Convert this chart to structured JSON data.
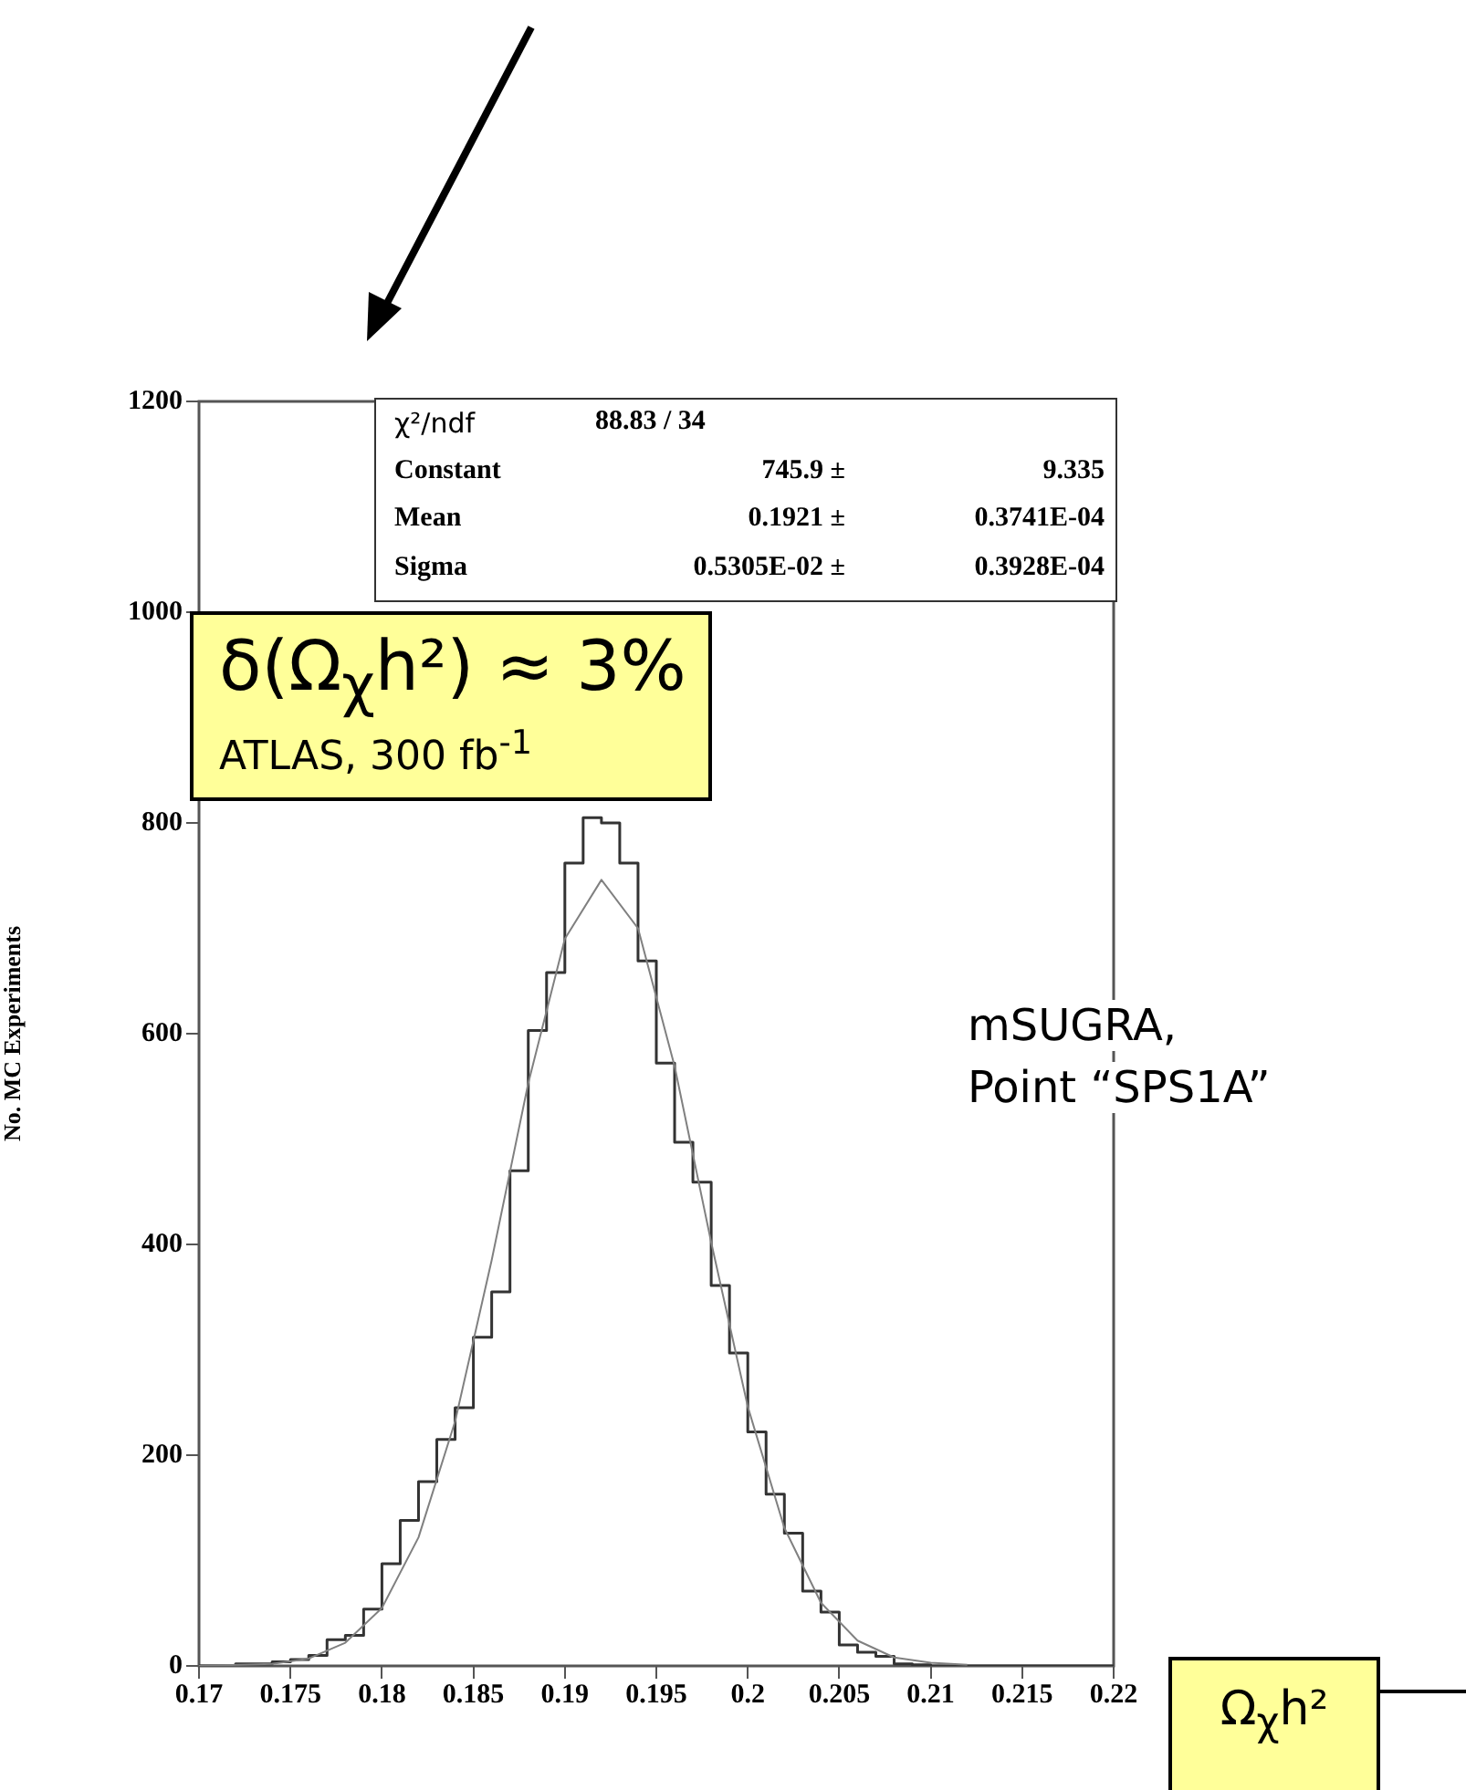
{
  "chart_data": {
    "type": "histogram",
    "xlabel": "Ω$_{χ}$h²",
    "ylabel": "No. MC Experiments",
    "xlim": [
      0.17,
      0.22
    ],
    "xticks": [
      0.17,
      0.175,
      0.18,
      0.185,
      0.19,
      0.195,
      0.2,
      0.205,
      0.21,
      0.215,
      0.22
    ],
    "ylim": [
      0,
      1200
    ],
    "yticks": [
      0,
      200,
      400,
      600,
      800,
      1000,
      1200
    ],
    "series": [
      {
        "type": "histogram",
        "color": "#333333",
        "bins": [
          0.17,
          0.171,
          0.172,
          0.173,
          0.174,
          0.175,
          0.176,
          0.177,
          0.178,
          0.179,
          0.18,
          0.181,
          0.182,
          0.183,
          0.184,
          0.185,
          0.186,
          0.187,
          0.188,
          0.189,
          0.19,
          0.191,
          0.192,
          0.193,
          0.194,
          0.195,
          0.196,
          0.197,
          0.198,
          0.199,
          0.2,
          0.201,
          0.202,
          0.203,
          0.204,
          0.205,
          0.206,
          0.207,
          0.208,
          0.209,
          0.21,
          0.211,
          0.212,
          0.213,
          0.214,
          0.215,
          0.216,
          0.217,
          0.218,
          0.219,
          0.22
        ],
        "values": [
          0,
          0,
          2,
          2,
          4,
          6,
          10,
          25,
          29,
          54,
          97,
          138,
          175,
          215,
          245,
          312,
          355,
          470,
          603,
          658,
          762,
          805,
          800,
          762,
          669,
          572,
          497,
          459,
          361,
          297,
          222,
          163,
          126,
          71,
          51,
          20,
          13,
          9,
          2,
          1,
          0,
          0,
          0,
          0,
          0,
          0,
          0,
          0,
          0,
          0
        ]
      },
      {
        "type": "line",
        "color": "#808080",
        "x": [
          0.17,
          0.174,
          0.176,
          0.178,
          0.18,
          0.182,
          0.184,
          0.186,
          0.188,
          0.19,
          0.192,
          0.194,
          0.196,
          0.198,
          0.2,
          0.202,
          0.204,
          0.206,
          0.208,
          0.21,
          0.212
        ],
        "values": [
          0,
          2,
          7,
          22,
          55,
          122,
          232,
          385,
          553,
          690,
          746,
          700,
          569,
          402,
          246,
          131,
          60,
          24,
          8,
          3,
          1
        ]
      }
    ],
    "annotations": [
      "χ²/ndf\t88.83  /  34",
      "Constant\t745.9 ±\t9.335",
      "Mean\t0.1921 ±\t0.3741E-04",
      "Sigma\t0.5305E-02 ±\t0.3928E-04",
      "δ(Ω$_{χ}$h²) ≈ 3%",
      "ATLAS, 300 fb$^{-1}$",
      "mSUGRA,",
      "Point “SPS1A”"
    ]
  }
}
